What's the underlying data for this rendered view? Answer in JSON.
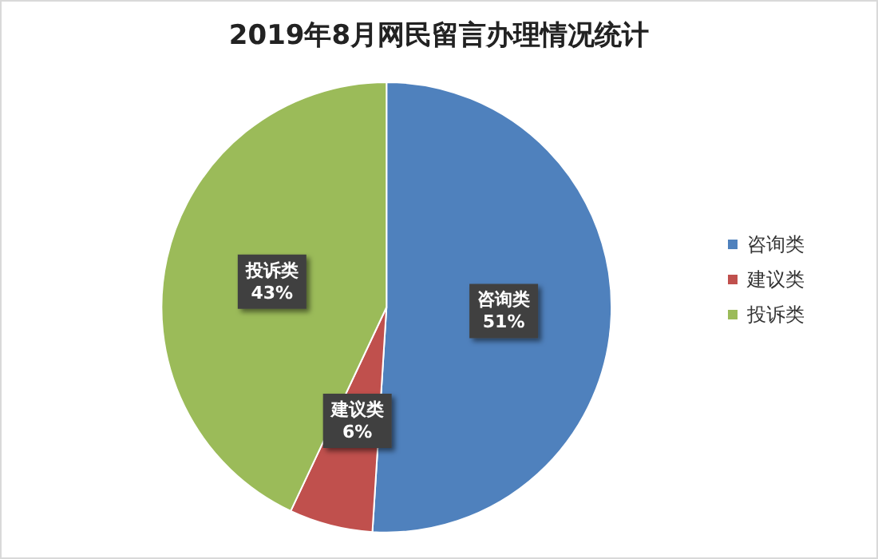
{
  "chart_data": {
    "type": "pie",
    "title": "2019年8月网民留言办理情况统计",
    "categories": [
      "咨询类",
      "建议类",
      "投诉类"
    ],
    "values": [
      51,
      6,
      43
    ],
    "colors": [
      "#4f81bd",
      "#c0504d",
      "#9bbb59"
    ],
    "value_labels": [
      "51%",
      "6%",
      "43%"
    ],
    "legend": "right"
  }
}
